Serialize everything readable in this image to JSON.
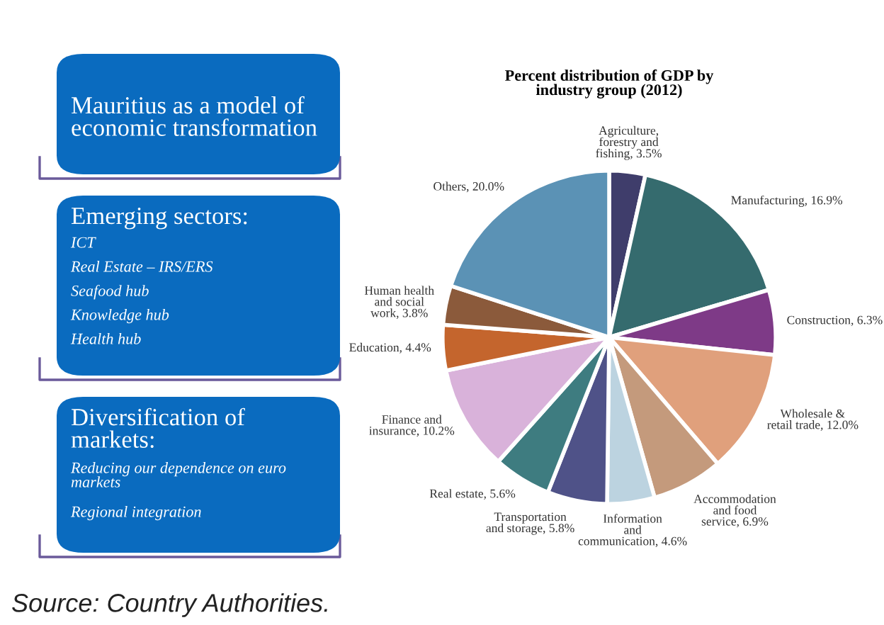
{
  "chart_data": [
    {
      "type": "other",
      "annotations": [
        "Mauritius as a model of economic transformation",
        "Emerging sectors:",
        "ICT",
        "Real Estate – IRS/ERS",
        "Seafood hub",
        "Knowledge hub",
        "Health hub",
        "Diversification of markets:",
        "Reducing our dependence on euro markets",
        "Regional integration"
      ]
    },
    {
      "type": "pie",
      "title": "Percent distribution of GDP by industry group (2012)",
      "categories": [
        "Agriculture, forestry and fishing",
        "Manufacturing",
        "Construction",
        "Wholesale & retail trade",
        "Accommodation and food service",
        "Information and communication",
        "Transportation and storage",
        "Real estate",
        "Finance and insurance",
        "Education",
        "Human health and social work",
        "Others"
      ],
      "values": [
        3.5,
        16.9,
        6.3,
        12.0,
        6.9,
        4.6,
        5.8,
        5.6,
        10.2,
        4.4,
        3.8,
        20.0
      ],
      "value_labels": [
        "3.5%",
        "16.9%",
        "6.3%",
        "12.0%",
        "6.9%",
        "4.6%",
        "5.8%",
        "5.6%",
        "10.2%",
        "4.4%",
        "3.8%",
        "20.0%"
      ],
      "colors": [
        "#3f3d6b",
        "#356b6e",
        "#7e3a87",
        "#e0a07c",
        "#c49a7c",
        "#bcd3e0",
        "#4f5288",
        "#3e7c80",
        "#d9b2da",
        "#c4652d",
        "#8b5a3b",
        "#5b92b5"
      ],
      "annotations": [
        "Source: Country Authorities."
      ]
    }
  ]
}
